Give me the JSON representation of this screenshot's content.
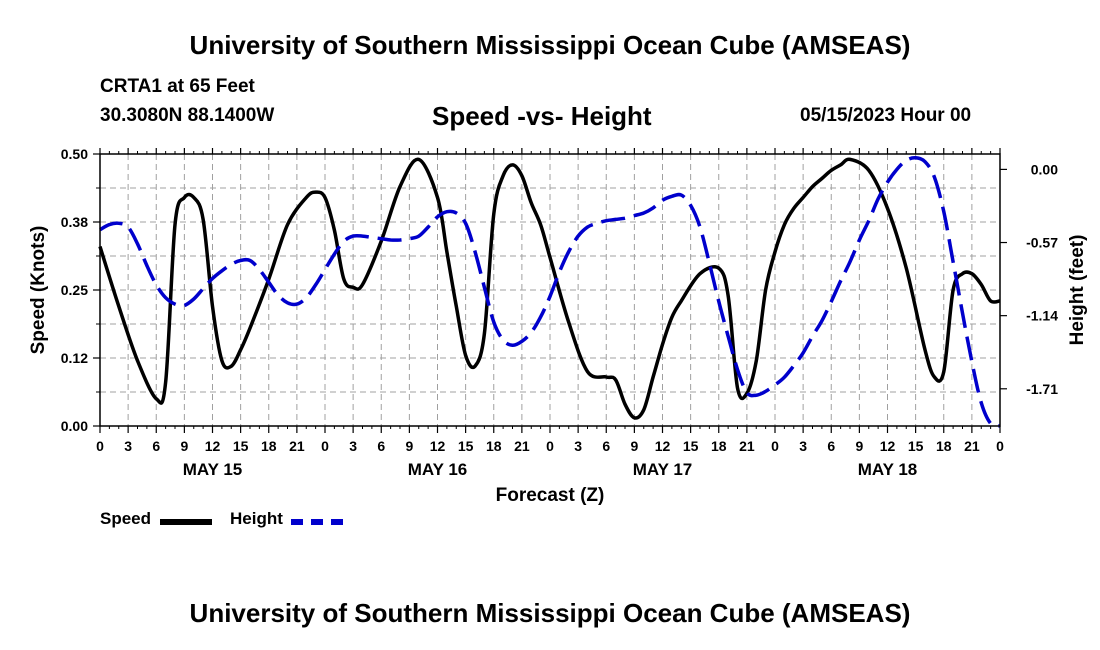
{
  "header": {
    "title": "University of Southern Mississippi Ocean Cube (AMSEAS)",
    "station": "CRTA1 at 65 Feet",
    "coords": "30.3080N  88.1400W",
    "subtitle": "Speed -vs- Height",
    "datetime": "05/15/2023 Hour 00"
  },
  "footer": {
    "title": "University of Southern Mississippi Ocean Cube (AMSEAS)"
  },
  "legend": {
    "speed_label": "Speed",
    "height_label": "Height"
  },
  "colors": {
    "speed": "#000000",
    "height": "#0000cc",
    "grid": "#a0a0a0"
  },
  "chart_data": {
    "type": "line",
    "title": "Speed -vs- Height",
    "xlabel": "Forecast (Z)",
    "ylabel": "Speed (Knots)",
    "y2label": "Height (feet)",
    "xlim": [
      0,
      96
    ],
    "ylim": [
      0,
      0.5
    ],
    "y2lim": [
      -2.0,
      0.12
    ],
    "x_tick_labels": [
      "0",
      "3",
      "6",
      "9",
      "12",
      "15",
      "18",
      "21",
      "0",
      "3",
      "6",
      "9",
      "12",
      "15",
      "18",
      "21",
      "0",
      "3",
      "6",
      "9",
      "12",
      "15",
      "18",
      "21",
      "0",
      "3",
      "6",
      "9",
      "12",
      "15",
      "18",
      "21",
      "0"
    ],
    "day_labels": [
      "MAY 15",
      "MAY 16",
      "MAY 17",
      "MAY 18"
    ],
    "y_ticks": [
      "0.00",
      "0.12",
      "0.25",
      "0.38",
      "0.50"
    ],
    "y2_ticks": [
      "0.00",
      "-0.57",
      "-1.14",
      "-1.71"
    ],
    "grid": true,
    "legend_position": "bottom-left",
    "series": [
      {
        "name": "Speed",
        "axis": "left",
        "style": "solid",
        "x": [
          0,
          2,
          4,
          6,
          7,
          8,
          9,
          10,
          11,
          12,
          13,
          14,
          15,
          16,
          18,
          20,
          22,
          23,
          24,
          25,
          26,
          27,
          28,
          30,
          32,
          34,
          36,
          37,
          38,
          39,
          40,
          41,
          42,
          43,
          44,
          45,
          46,
          47,
          48,
          50,
          52,
          54,
          55,
          56,
          57,
          58,
          59,
          60,
          61,
          62,
          64,
          66,
          67,
          68,
          69,
          70,
          71,
          72,
          73,
          74,
          75,
          76,
          77,
          78,
          79,
          80,
          82,
          84,
          86,
          88,
          89,
          90,
          91,
          92,
          93,
          94,
          95,
          96
        ],
        "values": [
          0.33,
          0.22,
          0.12,
          0.05,
          0.08,
          0.37,
          0.42,
          0.42,
          0.38,
          0.22,
          0.12,
          0.11,
          0.14,
          0.18,
          0.27,
          0.37,
          0.42,
          0.43,
          0.42,
          0.36,
          0.27,
          0.255,
          0.26,
          0.34,
          0.44,
          0.49,
          0.42,
          0.32,
          0.22,
          0.13,
          0.11,
          0.17,
          0.39,
          0.46,
          0.48,
          0.46,
          0.41,
          0.37,
          0.31,
          0.19,
          0.1,
          0.09,
          0.085,
          0.04,
          0.015,
          0.03,
          0.09,
          0.15,
          0.2,
          0.23,
          0.28,
          0.29,
          0.24,
          0.07,
          0.06,
          0.12,
          0.25,
          0.32,
          0.37,
          0.4,
          0.42,
          0.44,
          0.455,
          0.47,
          0.48,
          0.49,
          0.47,
          0.4,
          0.29,
          0.14,
          0.09,
          0.1,
          0.25,
          0.28,
          0.28,
          0.26,
          0.23,
          0.23
        ]
      },
      {
        "name": "Height",
        "axis": "right",
        "style": "dashed",
        "x": [
          0,
          1,
          2,
          3,
          4,
          5,
          6,
          7,
          8,
          9,
          10,
          11,
          12,
          13,
          14,
          15,
          16,
          17,
          18,
          19,
          20,
          21,
          22,
          23,
          24,
          25,
          26,
          27,
          28,
          29,
          30,
          31,
          32,
          33,
          34,
          35,
          36,
          37,
          38,
          39,
          40,
          41,
          42,
          43,
          44,
          45,
          46,
          47,
          48,
          49,
          50,
          51,
          52,
          53,
          54,
          55,
          56,
          57,
          58,
          59,
          60,
          61,
          62,
          63,
          64,
          65,
          66,
          67,
          68,
          69,
          70,
          71,
          72,
          73,
          74,
          75,
          76,
          77,
          78,
          79,
          80,
          81,
          82,
          83,
          84,
          85,
          86,
          87,
          88,
          89,
          90,
          91,
          92,
          93,
          94,
          95,
          96
        ],
        "values": [
          -0.47,
          -0.43,
          -0.42,
          -0.45,
          -0.58,
          -0.75,
          -0.9,
          -1.0,
          -1.05,
          -1.06,
          -1.01,
          -0.93,
          -0.85,
          -0.79,
          -0.74,
          -0.71,
          -0.71,
          -0.78,
          -0.88,
          -0.98,
          -1.04,
          -1.05,
          -1.0,
          -0.9,
          -0.78,
          -0.66,
          -0.56,
          -0.52,
          -0.52,
          -0.53,
          -0.54,
          -0.55,
          -0.55,
          -0.54,
          -0.52,
          -0.45,
          -0.37,
          -0.33,
          -0.34,
          -0.42,
          -0.64,
          -0.92,
          -1.19,
          -1.33,
          -1.37,
          -1.34,
          -1.27,
          -1.15,
          -0.99,
          -0.8,
          -0.64,
          -0.52,
          -0.45,
          -0.42,
          -0.4,
          -0.39,
          -0.38,
          -0.36,
          -0.34,
          -0.3,
          -0.24,
          -0.21,
          -0.2,
          -0.28,
          -0.45,
          -0.73,
          -1.03,
          -1.3,
          -1.56,
          -1.74,
          -1.76,
          -1.73,
          -1.68,
          -1.62,
          -1.53,
          -1.43,
          -1.3,
          -1.18,
          -1.03,
          -0.87,
          -0.72,
          -0.55,
          -0.4,
          -0.23,
          -0.1,
          0.0,
          0.07,
          0.09,
          0.06,
          -0.06,
          -0.33,
          -0.72,
          -1.12,
          -1.5,
          -1.82,
          -1.98,
          -2.0
        ]
      }
    ]
  }
}
